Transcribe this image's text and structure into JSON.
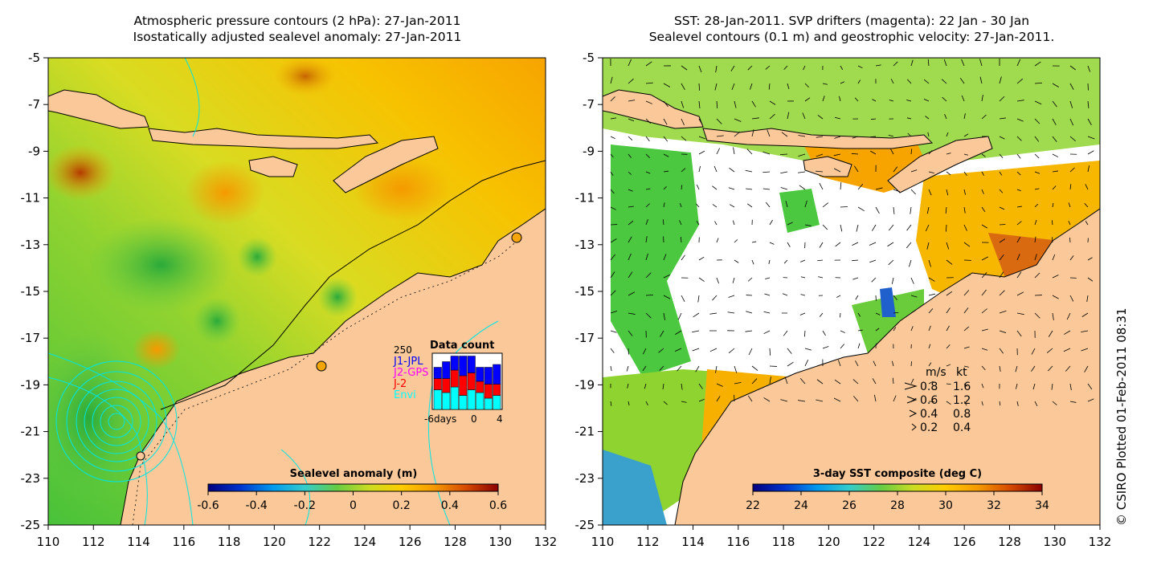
{
  "left_panel": {
    "title_line1": "Atmospheric pressure contours (2 hPa): 27-Jan-2011",
    "title_line2": "Isostatically adjusted sealevel anomaly: 27-Jan-2011",
    "colorbar": {
      "label": "Sealevel anomaly (m)",
      "ticks": [
        "-0.6",
        "-0.4",
        "-0.2",
        "0",
        "0.2",
        "0.4",
        "0.6"
      ],
      "colors": [
        "#00007f",
        "#0033cc",
        "#0099ee",
        "#33cccc",
        "#66cc44",
        "#ccdd22",
        "#ffcc00",
        "#f59a00",
        "#d64a00",
        "#8b0000"
      ]
    },
    "inset": {
      "title": "Data count",
      "y_max_label": "250",
      "x_labels": [
        "-6days",
        "0",
        "4"
      ],
      "legend": [
        {
          "label": "J1-JPL",
          "color": "#0000ff"
        },
        {
          "label": "J2-GPS",
          "color": "#ff00ff"
        },
        {
          "label": "J-2",
          "color": "#ff0000"
        },
        {
          "label": "Envi",
          "color": "#00ffff"
        }
      ]
    }
  },
  "right_panel": {
    "title_line1": "SST: 28-Jan-2011. SVP drifters (magenta): 22 Jan - 30 Jan",
    "title_line2": "Sealevel contours (0.1 m) and geostrophic velocity: 27-Jan-2011.",
    "colorbar": {
      "label": "3-day SST composite (deg C)",
      "ticks": [
        "22",
        "24",
        "26",
        "28",
        "30",
        "32",
        "34"
      ],
      "colors": [
        "#00007f",
        "#0033cc",
        "#0099ee",
        "#33cccc",
        "#66cc44",
        "#ccdd22",
        "#ffcc00",
        "#f59a00",
        "#d64a00",
        "#8b0000"
      ]
    },
    "speed_legend": {
      "header_ms": "m/s",
      "header_kt": "kt",
      "rows": [
        {
          "ms": "0.8",
          "kt": "1.6"
        },
        {
          "ms": "0.6",
          "kt": "1.2"
        },
        {
          "ms": "0.4",
          "kt": "0.8"
        },
        {
          "ms": "0.2",
          "kt": "0.4"
        }
      ]
    }
  },
  "axes": {
    "lat_labels": [
      "-5",
      "-7",
      "-9",
      "-11",
      "-13",
      "-15",
      "-17",
      "-19",
      "-21",
      "-23",
      "-25"
    ],
    "lon_labels": [
      "110",
      "112",
      "114",
      "116",
      "118",
      "120",
      "122",
      "124",
      "126",
      "128",
      "130",
      "132"
    ]
  },
  "colors": {
    "land": "#fbc999",
    "ocean_low": "#39c444",
    "ocean_mid": "#d7dd2a",
    "ocean_high": "#f6a600",
    "contour": "#00e5e5"
  },
  "credit": "© CSIRO Plotted 01-Feb-2011 08:31"
}
